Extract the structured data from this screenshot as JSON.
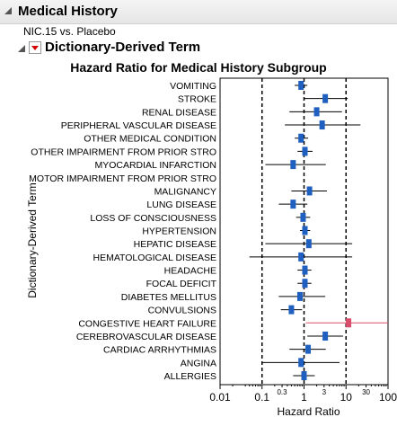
{
  "header": {
    "title": "Medical History"
  },
  "subtitle": "NIC.15 vs. Placebo",
  "section": {
    "title": "Dictionary-Derived Term"
  },
  "chart_data": {
    "type": "forest",
    "title": "Hazard Ratio for Medical History Subgroup",
    "xlabel": "Hazard Ratio",
    "ylabel": "Dictionary-Derived Term",
    "x_scale": "log",
    "xlim": [
      0.01,
      100
    ],
    "x_ticks": [
      "0.01",
      "0.1",
      "1",
      "10",
      "100"
    ],
    "x_minor_ticks": [
      "0.3",
      "3",
      "30"
    ],
    "reference_lines": [
      0.1,
      1,
      10
    ],
    "rows": [
      {
        "label": "VOMITING",
        "hr": 0.85,
        "lo": 0.6,
        "hi": 1.2,
        "color": "#1f5fbf"
      },
      {
        "label": "STROKE",
        "hr": 3.2,
        "lo": 1.0,
        "hi": 11,
        "color": "#1f5fbf"
      },
      {
        "label": "RENAL DISEASE",
        "hr": 2.0,
        "lo": 0.45,
        "hi": 8,
        "color": "#1f5fbf"
      },
      {
        "label": "PERIPHERAL VASCULAR DISEASE",
        "hr": 2.7,
        "lo": 0.35,
        "hi": 22,
        "color": "#1f5fbf"
      },
      {
        "label": "OTHER MEDICAL CONDITION",
        "hr": 0.85,
        "lo": 0.6,
        "hi": 1.25,
        "color": "#1f5fbf"
      },
      {
        "label": "OTHER IMPAIRMENT FROM PRIOR STRO",
        "hr": 1.05,
        "lo": 0.7,
        "hi": 1.6,
        "color": "#1f5fbf"
      },
      {
        "label": "MYOCARDIAL INFARCTION",
        "hr": 0.55,
        "lo": 0.12,
        "hi": 3.3,
        "color": "#1f5fbf"
      },
      {
        "label": "MOTOR IMPAIRMENT FROM PRIOR STRO",
        "hr": null,
        "lo": null,
        "hi": null,
        "color": "#1f5fbf"
      },
      {
        "label": "MALIGNANCY",
        "hr": 1.35,
        "lo": 0.5,
        "hi": 3.5,
        "color": "#1f5fbf"
      },
      {
        "label": "LUNG DISEASE",
        "hr": 0.55,
        "lo": 0.25,
        "hi": 1.2,
        "color": "#1f5fbf"
      },
      {
        "label": "LOSS OF CONSCIOUSNESS",
        "hr": 0.95,
        "lo": 0.65,
        "hi": 1.4,
        "color": "#1f5fbf"
      },
      {
        "label": "HYPERTENSION",
        "hr": 1.05,
        "lo": 0.8,
        "hi": 1.4,
        "color": "#1f5fbf"
      },
      {
        "label": "HEPATIC DISEASE",
        "hr": 1.3,
        "lo": 0.12,
        "hi": 14,
        "color": "#1f5fbf"
      },
      {
        "label": "HEMATOLOGICAL DISEASE",
        "hr": 0.85,
        "lo": 0.05,
        "hi": 14,
        "color": "#1f5fbf"
      },
      {
        "label": "HEADACHE",
        "hr": 1.05,
        "lo": 0.7,
        "hi": 1.5,
        "color": "#1f5fbf"
      },
      {
        "label": "FOCAL DEFICIT",
        "hr": 1.05,
        "lo": 0.7,
        "hi": 1.5,
        "color": "#1f5fbf"
      },
      {
        "label": "DIABETES MELLITUS",
        "hr": 0.8,
        "lo": 0.25,
        "hi": 3.2,
        "color": "#1f5fbf"
      },
      {
        "label": "CONVULSIONS",
        "hr": 0.5,
        "lo": 0.28,
        "hi": 0.9,
        "color": "#1f5fbf"
      },
      {
        "label": "CONGESTIVE HEART FAILURE",
        "hr": 11.5,
        "lo": 1.1,
        "hi": 100,
        "color": "#d94f6b"
      },
      {
        "label": "CEREBROVASCULAR DISEASE",
        "hr": 3.2,
        "lo": 1.2,
        "hi": 8.5,
        "color": "#1f5fbf"
      },
      {
        "label": "CARDIAC ARRHYTHMIAS",
        "hr": 1.25,
        "lo": 0.45,
        "hi": 3.3,
        "color": "#1f5fbf"
      },
      {
        "label": "ANGINA",
        "hr": 0.85,
        "lo": 0.1,
        "hi": 7,
        "color": "#1f5fbf"
      },
      {
        "label": "ALLERGIES",
        "hr": 1.0,
        "lo": 0.55,
        "hi": 1.8,
        "color": "#1f5fbf"
      }
    ]
  }
}
